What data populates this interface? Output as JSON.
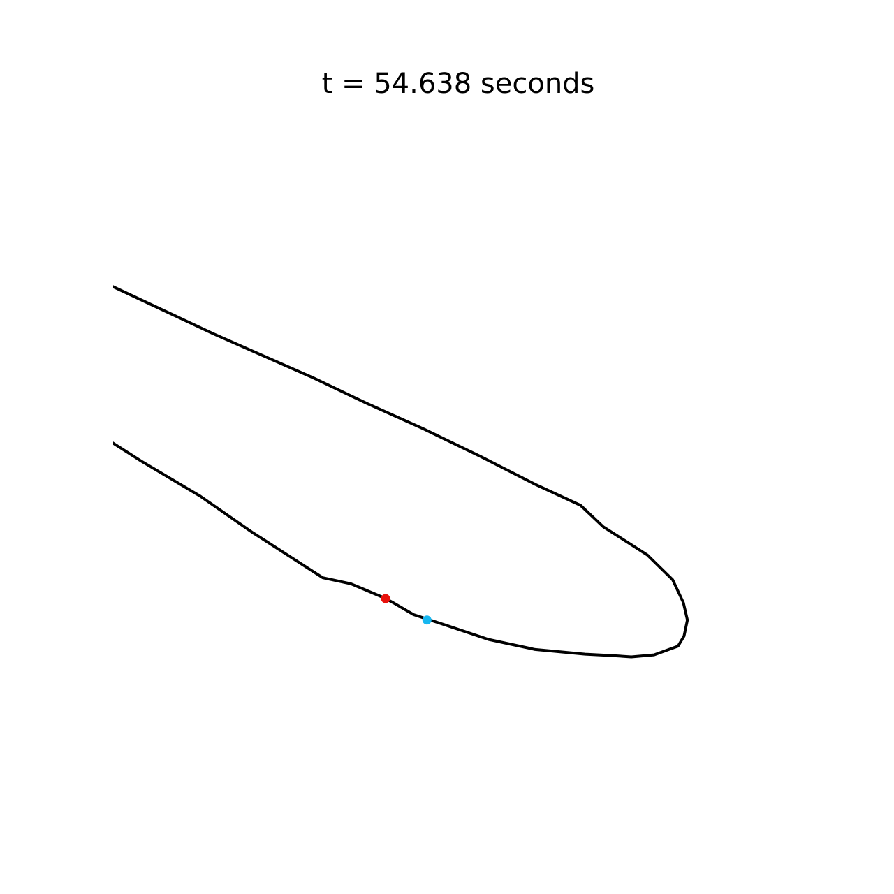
{
  "chart_data": {
    "type": "line",
    "title": "t = 54.638 seconds",
    "xlabel": "",
    "ylabel": "",
    "axes_visible": false,
    "grid": false,
    "xlim": [
      0,
      1000
    ],
    "ylim": [
      0,
      1000
    ],
    "series": [
      {
        "color": "#000000",
        "points": [
          [
            -2,
            740
          ],
          [
            150,
            669
          ],
          [
            300,
            603
          ],
          [
            380,
            565
          ],
          [
            465,
            527
          ],
          [
            550,
            486
          ],
          [
            633,
            444
          ],
          [
            700,
            413
          ],
          [
            734,
            381
          ],
          [
            800,
            339
          ],
          [
            838,
            302
          ],
          [
            854,
            268
          ],
          [
            860,
            242
          ],
          [
            855,
            218
          ],
          [
            846,
            203
          ],
          [
            810,
            190
          ],
          [
            776,
            187
          ],
          [
            747,
            189
          ],
          [
            707,
            191
          ],
          [
            632,
            198
          ],
          [
            562,
            213
          ],
          [
            490,
            237
          ],
          [
            450,
            250
          ],
          [
            419,
            268
          ],
          [
            406,
            275
          ],
          [
            356,
            296
          ],
          [
            314,
            305
          ],
          [
            208,
            373
          ],
          [
            130,
            427
          ],
          [
            42,
            479
          ],
          [
            -2,
            507
          ]
        ]
      }
    ],
    "markers": [
      {
        "x": 408,
        "y": 274,
        "color": "#e8120c"
      },
      {
        "x": 470,
        "y": 242,
        "color": "#16b7f0"
      }
    ]
  }
}
